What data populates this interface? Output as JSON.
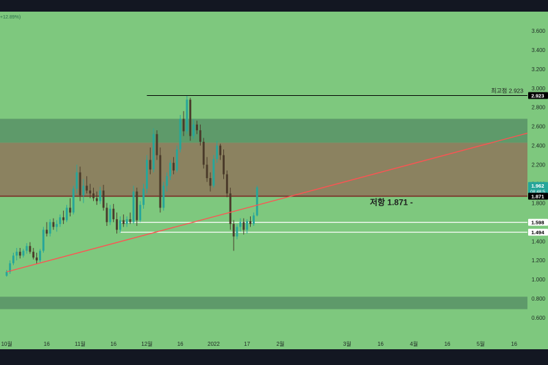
{
  "header": {
    "change_text": "+12.89%)"
  },
  "annotations": {
    "ath_label": "최고점 2.923",
    "resistance_label": "저항 1.871 -"
  },
  "price_tags": [
    {
      "label": "2.923",
      "value": 2.923,
      "bg": "#000000",
      "fg": "#ffffff"
    },
    {
      "label": "1.962",
      "sub": "08:48:5",
      "value": 1.962,
      "bg": "#26a69a",
      "fg": "#ffffff"
    },
    {
      "label": "1.871",
      "value": 1.871,
      "bg": "#000000",
      "fg": "#ffffff"
    },
    {
      "label": "1.598",
      "value": 1.598,
      "bg": "#ffffff",
      "fg": "#000000"
    },
    {
      "label": "1.494",
      "value": 1.494,
      "bg": "#ffffff",
      "fg": "#000000"
    }
  ],
  "colors": {
    "background": "#7ec87e",
    "zone_dark": "#5e9a6a",
    "zone_brown": "#8b8260",
    "candle_up": "#26a69a",
    "candle_down": "#4a3a2a",
    "trendline": "#ff5252",
    "resistance_line": "#7a1f1f",
    "support_line": "#ffffff",
    "ath_line": "#000000",
    "frame": "#131722"
  },
  "chart_data": {
    "type": "candlestick",
    "y_axis": {
      "ticks": [
        "3.600",
        "3.400",
        "3.200",
        "3.000",
        "2.800",
        "2.600",
        "2.400",
        "2.200",
        "2.000",
        "1.800",
        "1.600",
        "1.400",
        "1.200",
        "1.000",
        "0.800",
        "0.600"
      ],
      "tick_values": [
        3.6,
        3.4,
        3.2,
        3.0,
        2.8,
        2.6,
        2.4,
        2.2,
        2.0,
        1.8,
        1.6,
        1.4,
        1.2,
        1.0,
        0.8,
        0.6
      ],
      "range": [
        0.4,
        3.8
      ]
    },
    "x_axis": {
      "ticks": [
        "10월",
        "16",
        "11월",
        "16",
        "12월",
        "16",
        "2022",
        "17",
        "2월",
        "3월",
        "16",
        "4월",
        "16",
        "5월",
        "16"
      ],
      "tick_index": [
        0,
        12,
        22,
        32,
        42,
        52,
        62,
        72,
        82,
        102,
        112,
        122,
        132,
        142,
        152
      ],
      "range_index": [
        -2,
        156
      ]
    },
    "zones": [
      {
        "name": "upper-supply-zone",
        "from": 2.43,
        "to": 2.68,
        "color": "dark"
      },
      {
        "name": "resistance-zone",
        "from": 1.871,
        "to": 2.43,
        "color": "brown"
      },
      {
        "name": "lower-demand-zone",
        "from": 0.69,
        "to": 0.82,
        "color": "dark"
      }
    ],
    "levels": [
      {
        "name": "all-time-high",
        "value": 2.923,
        "from_index": 42,
        "to_index": 156
      },
      {
        "name": "resistance",
        "value": 1.871
      },
      {
        "name": "support-1",
        "value": 1.598,
        "from_index": 34,
        "to_index": 156
      },
      {
        "name": "support-2",
        "value": 1.494,
        "from_index": 34,
        "to_index": 156
      }
    ],
    "trendline": {
      "from": {
        "index": 0,
        "value": 1.08
      },
      "to": {
        "index": 156,
        "value": 2.53
      }
    },
    "candles": [
      [
        1.04,
        1.1,
        1.03,
        1.08
      ],
      [
        1.08,
        1.2,
        1.06,
        1.17
      ],
      [
        1.17,
        1.28,
        1.15,
        1.25
      ],
      [
        1.25,
        1.33,
        1.2,
        1.29
      ],
      [
        1.29,
        1.33,
        1.22,
        1.25
      ],
      [
        1.25,
        1.32,
        1.23,
        1.3
      ],
      [
        1.3,
        1.38,
        1.27,
        1.35
      ],
      [
        1.35,
        1.39,
        1.27,
        1.29
      ],
      [
        1.29,
        1.33,
        1.21,
        1.23
      ],
      [
        1.23,
        1.28,
        1.16,
        1.2
      ],
      [
        1.2,
        1.32,
        1.18,
        1.3
      ],
      [
        1.3,
        1.55,
        1.28,
        1.52
      ],
      [
        1.52,
        1.6,
        1.45,
        1.48
      ],
      [
        1.48,
        1.63,
        1.45,
        1.6
      ],
      [
        1.6,
        1.64,
        1.52,
        1.55
      ],
      [
        1.55,
        1.62,
        1.5,
        1.58
      ],
      [
        1.58,
        1.68,
        1.55,
        1.65
      ],
      [
        1.65,
        1.72,
        1.58,
        1.62
      ],
      [
        1.62,
        1.78,
        1.6,
        1.75
      ],
      [
        1.75,
        1.85,
        1.66,
        1.7
      ],
      [
        1.7,
        1.98,
        1.68,
        1.95
      ],
      [
        1.95,
        2.2,
        1.9,
        2.12
      ],
      [
        2.12,
        2.18,
        1.82,
        1.88
      ],
      [
        1.88,
        2.05,
        1.8,
        1.98
      ],
      [
        1.98,
        2.08,
        1.9,
        1.93
      ],
      [
        1.93,
        2.0,
        1.85,
        1.9
      ],
      [
        1.9,
        1.96,
        1.82,
        1.85
      ],
      [
        1.85,
        1.92,
        1.78,
        1.82
      ],
      [
        1.82,
        1.97,
        1.79,
        1.93
      ],
      [
        1.93,
        1.99,
        1.72,
        1.75
      ],
      [
        1.75,
        1.8,
        1.56,
        1.6
      ],
      [
        1.6,
        1.78,
        1.57,
        1.74
      ],
      [
        1.74,
        1.79,
        1.6,
        1.63
      ],
      [
        1.63,
        1.7,
        1.48,
        1.52
      ],
      [
        1.52,
        1.66,
        1.49,
        1.62
      ],
      [
        1.62,
        1.68,
        1.55,
        1.58
      ],
      [
        1.58,
        1.66,
        1.55,
        1.63
      ],
      [
        1.63,
        1.7,
        1.58,
        1.6
      ],
      [
        1.6,
        1.98,
        1.58,
        1.92
      ],
      [
        1.92,
        1.96,
        1.56,
        1.62
      ],
      [
        1.62,
        1.82,
        1.6,
        1.78
      ],
      [
        1.78,
        2.0,
        1.74,
        1.95
      ],
      [
        1.95,
        2.3,
        1.9,
        2.25
      ],
      [
        2.25,
        2.38,
        2.1,
        2.15
      ],
      [
        2.15,
        2.58,
        2.12,
        2.52
      ],
      [
        2.52,
        2.56,
        2.25,
        2.3
      ],
      [
        2.3,
        2.38,
        1.7,
        1.75
      ],
      [
        1.75,
        2.02,
        1.72,
        1.98
      ],
      [
        1.98,
        2.12,
        1.92,
        2.08
      ],
      [
        2.08,
        2.25,
        2.04,
        2.22
      ],
      [
        2.22,
        2.28,
        2.1,
        2.14
      ],
      [
        2.14,
        2.4,
        2.12,
        2.36
      ],
      [
        2.36,
        2.72,
        2.33,
        2.68
      ],
      [
        2.68,
        2.76,
        2.5,
        2.55
      ],
      [
        2.55,
        2.92,
        2.52,
        2.88
      ],
      [
        2.88,
        2.9,
        2.45,
        2.5
      ],
      [
        2.5,
        2.68,
        2.47,
        2.62
      ],
      [
        2.62,
        2.66,
        2.52,
        2.56
      ],
      [
        2.56,
        2.62,
        2.4,
        2.44
      ],
      [
        2.44,
        2.48,
        2.16,
        2.2
      ],
      [
        2.2,
        2.28,
        2.02,
        2.06
      ],
      [
        2.06,
        2.12,
        1.92,
        1.98
      ],
      [
        1.98,
        2.3,
        1.96,
        2.26
      ],
      [
        2.26,
        2.45,
        2.22,
        2.4
      ],
      [
        2.4,
        2.42,
        2.25,
        2.3
      ],
      [
        2.3,
        2.36,
        2.05,
        2.1
      ],
      [
        2.1,
        2.14,
        1.86,
        1.9
      ],
      [
        1.9,
        1.96,
        1.52,
        1.58
      ],
      [
        1.58,
        1.62,
        1.3,
        1.45
      ],
      [
        1.45,
        1.58,
        1.42,
        1.55
      ],
      [
        1.55,
        1.64,
        1.5,
        1.6
      ],
      [
        1.6,
        1.64,
        1.47,
        1.52
      ],
      [
        1.52,
        1.63,
        1.48,
        1.61
      ],
      [
        1.61,
        1.66,
        1.55,
        1.58
      ],
      [
        1.58,
        1.7,
        1.56,
        1.67
      ],
      [
        1.67,
        1.98,
        1.66,
        1.962
      ]
    ]
  }
}
